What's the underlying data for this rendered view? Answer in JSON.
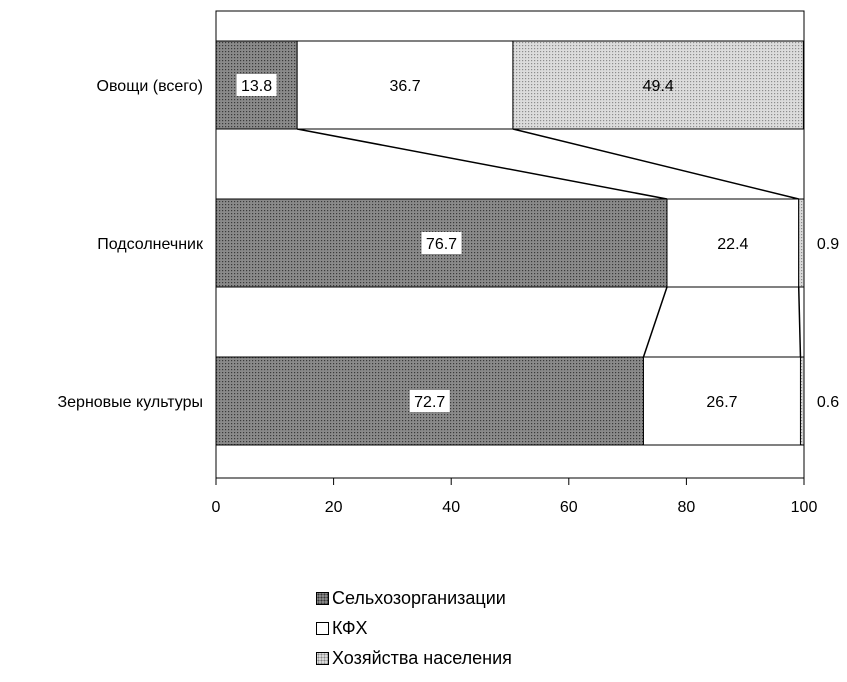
{
  "chart_data": {
    "type": "bar",
    "orientation": "horizontal",
    "stacked": true,
    "categories": [
      "Овощи (всего)",
      "Подсолнечник",
      "Зерновые культуры"
    ],
    "series": [
      {
        "name": "Сельхозорганизации",
        "values": [
          13.8,
          76.7,
          72.7
        ],
        "color": "#8a8a8a"
      },
      {
        "name": "КФХ",
        "values": [
          36.7,
          22.4,
          26.7
        ],
        "color": "#ffffff"
      },
      {
        "name": "Хозяйства населения",
        "values": [
          49.4,
          0.9,
          0.6
        ],
        "color": "#d9d9d9"
      }
    ],
    "xlim": [
      0,
      100
    ],
    "xticks": [
      0,
      20,
      40,
      60,
      80,
      100
    ],
    "grid": false,
    "legend": "bottom"
  }
}
